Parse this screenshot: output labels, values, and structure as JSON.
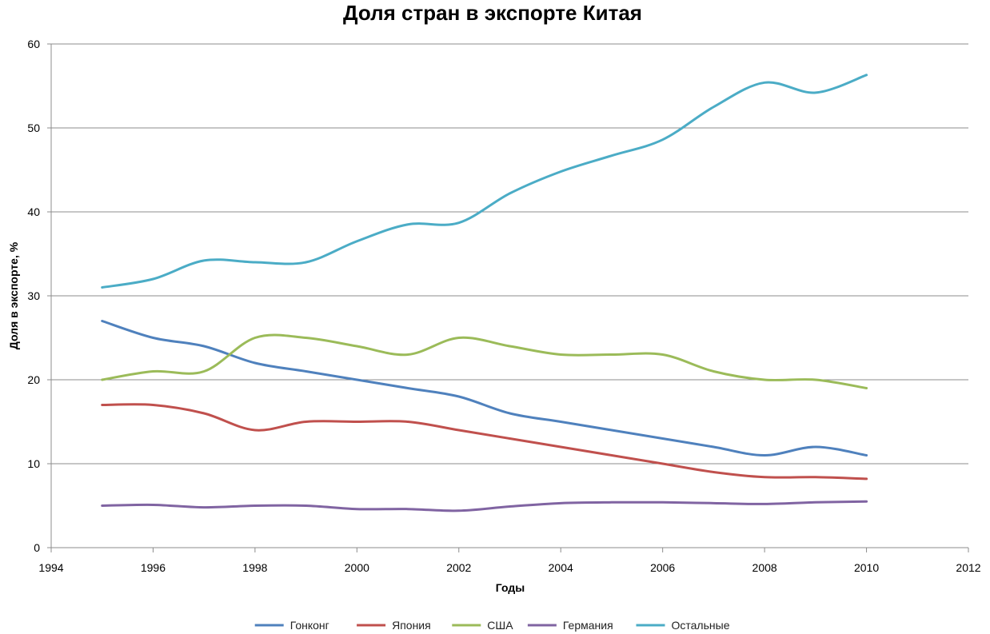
{
  "chart_data": {
    "type": "line",
    "title": "Доля стран в экспорте Китая",
    "xlabel": "Годы",
    "ylabel": "Доля в экспорте, %",
    "xlim": [
      1994,
      2012
    ],
    "ylim": [
      0,
      60
    ],
    "x_ticks": [
      "1994",
      "1996",
      "1998",
      "2000",
      "2002",
      "2004",
      "2006",
      "2008",
      "2010",
      "2012"
    ],
    "y_ticks": [
      "0",
      "10",
      "20",
      "30",
      "40",
      "50",
      "60"
    ],
    "grid": "horizontal",
    "legend_position": "bottom",
    "x": [
      1995,
      1996,
      1997,
      1998,
      1999,
      2000,
      2001,
      2002,
      2003,
      2004,
      2005,
      2006,
      2007,
      2008,
      2009,
      2010
    ],
    "series": [
      {
        "name": "Гонконг",
        "color": "#4F81BD",
        "values": [
          27,
          25,
          24,
          22,
          21,
          20,
          19,
          18,
          16,
          15,
          14,
          13,
          12,
          11,
          12,
          11
        ]
      },
      {
        "name": "Япония",
        "color": "#C0504D",
        "values": [
          17,
          17,
          16,
          14,
          15,
          15,
          15,
          14,
          13,
          12,
          11,
          10,
          9,
          8.4,
          8.4,
          8.2
        ]
      },
      {
        "name": "США",
        "color": "#9BBB59",
        "values": [
          20,
          21,
          21,
          25,
          25,
          24,
          23,
          25,
          24,
          23,
          23,
          23,
          21,
          20,
          20,
          19
        ]
      },
      {
        "name": "Германия",
        "color": "#8064A2",
        "values": [
          5,
          5.1,
          4.8,
          5,
          5,
          4.6,
          4.6,
          4.4,
          4.9,
          5.3,
          5.4,
          5.4,
          5.3,
          5.2,
          5.4,
          5.5
        ]
      },
      {
        "name": "Остальные",
        "color": "#4BACC6",
        "values": [
          31,
          32,
          34.2,
          34,
          34,
          36.5,
          38.5,
          38.7,
          42.2,
          44.8,
          46.7,
          48.6,
          52.5,
          55.4,
          54.2,
          56.3
        ]
      }
    ]
  }
}
